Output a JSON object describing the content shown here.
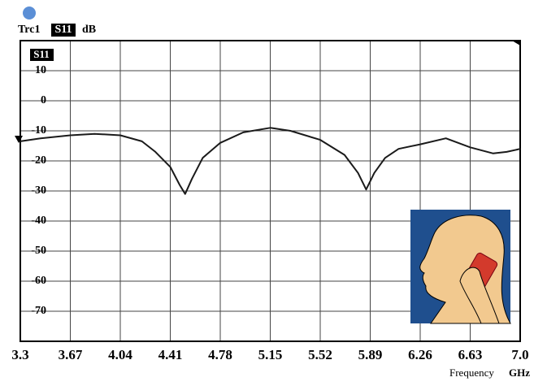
{
  "chart_data": {
    "type": "line",
    "trace": "Trc1",
    "unit": "dB",
    "xlabel": "Frequency",
    "xunit": "GHz",
    "x": [
      3.3,
      3.45,
      3.67,
      3.85,
      4.04,
      4.2,
      4.3,
      4.41,
      4.48,
      4.52,
      4.57,
      4.65,
      4.78,
      4.95,
      5.15,
      5.3,
      5.52,
      5.7,
      5.8,
      5.86,
      5.92,
      6.0,
      6.1,
      6.26,
      6.45,
      6.63,
      6.8,
      6.9,
      7.0
    ],
    "series": [
      {
        "name": "S11",
        "color": "#1a1a1a",
        "values": [
          -13.5,
          -12.5,
          -11.5,
          -11,
          -11.5,
          -13.5,
          -17,
          -22,
          -28,
          -31,
          -26,
          -19,
          -14,
          -10.5,
          -9,
          -10,
          -13,
          -18,
          -24,
          -29.5,
          -24,
          -19,
          -16,
          -14.5,
          -12.5,
          -15.5,
          -17.5,
          -17,
          -16
        ]
      }
    ],
    "xlim": [
      3.3,
      7.0
    ],
    "xticks": [
      3.3,
      3.67,
      4.04,
      4.41,
      4.78,
      5.15,
      5.52,
      5.89,
      6.26,
      6.63,
      {
        "value": 7.0,
        "label": "7.0"
      }
    ],
    "ylim": [
      -80,
      20
    ],
    "yticks": [
      10,
      0,
      -10,
      -20,
      -30,
      -40,
      -50,
      -60,
      -70
    ],
    "grid": true
  }
}
